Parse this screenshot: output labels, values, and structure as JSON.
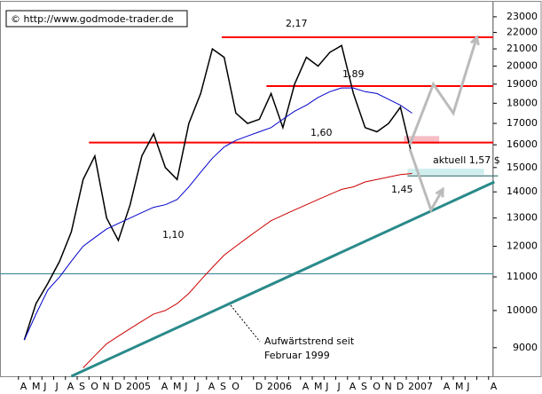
{
  "chart_data": {
    "type": "line",
    "source": "© http://www.godmode-trader.de",
    "log_y": true,
    "categories": [
      "A",
      "M",
      "J",
      "J",
      "A",
      "S",
      "O",
      "N",
      "D",
      "2005",
      null,
      null,
      "A",
      "M",
      "J",
      "J",
      "A",
      "S",
      "O",
      null,
      "D",
      "2006",
      null,
      null,
      "A",
      "M",
      "J",
      "J",
      "A",
      "S",
      "O",
      "N",
      "D",
      "2007",
      null,
      null,
      "A",
      "M",
      "J",
      null,
      "A"
    ],
    "series": [
      {
        "color": "#000000",
        "values": [
          9200,
          10200,
          10800,
          11500,
          12500,
          14500,
          15500,
          13000,
          12200,
          13500,
          15500,
          16500,
          15000,
          14500,
          17000,
          18500,
          21000,
          20500,
          17500,
          17000,
          17200,
          18500,
          16800,
          19000,
          20500,
          20000,
          20800,
          21200,
          18500,
          16800,
          16600,
          17000,
          17800,
          15500,
          null,
          null,
          null,
          null,
          null,
          null,
          null
        ]
      },
      {
        "color": "#0000cc",
        "values": [
          9200,
          9900,
          10600,
          11000,
          11500,
          12000,
          12300,
          12600,
          12800,
          13000,
          13200,
          13400,
          13500,
          13700,
          14200,
          14800,
          15400,
          15900,
          16200,
          16400,
          16600,
          16800,
          17200,
          17600,
          17900,
          18300,
          18600,
          18800,
          18800,
          18600,
          18500,
          18200,
          17900,
          17500,
          null,
          null,
          null,
          null,
          null,
          null,
          null
        ]
      },
      {
        "color": "#cc0000",
        "values": [
          null,
          null,
          null,
          null,
          null,
          8500,
          8800,
          9100,
          9300,
          9500,
          9700,
          9900,
          10000,
          10200,
          10500,
          10900,
          11300,
          11700,
          12000,
          12300,
          12600,
          12900,
          13100,
          13300,
          13500,
          13700,
          13900,
          14100,
          14200,
          14400,
          14500,
          14600,
          14700,
          14750,
          null,
          null,
          null,
          null,
          null,
          null,
          null
        ]
      }
    ],
    "ylim": [
      8300,
      24000
    ],
    "yticks": [
      9000,
      10000,
      11000,
      12000,
      13000,
      14000,
      15000,
      16000,
      17000,
      18000,
      19000,
      20000,
      21000,
      22000,
      23000
    ],
    "levels": [
      {
        "value": 21700,
        "from": 16.8,
        "color": "#ff0000"
      },
      {
        "value": 18900,
        "from": 20.6,
        "color": "#ff0000"
      },
      {
        "value": 16100,
        "from": 5.5,
        "color": "#ff0000"
      },
      {
        "value": 11100,
        "from": -2.1,
        "color": "#4a8fa0"
      },
      {
        "value": 14650,
        "from": 32.6,
        "to": 40.3,
        "color": "#2a6a6a"
      }
    ],
    "zones": [
      {
        "y": [
          16050,
          16400
        ],
        "x": [
          32.3,
          35.3
        ],
        "color": "#f6bcc4"
      },
      {
        "y": [
          14700,
          14950
        ],
        "x": [
          32.6,
          39.1
        ],
        "color": "#cfeeee"
      }
    ],
    "trend": {
      "x": [
        4,
        40
      ],
      "values": [
        8300,
        14400
      ],
      "color": "#2a8a8a"
    },
    "forecast": [
      {
        "x": [
          32.8,
          34.8,
          36.5,
          38.5
        ],
        "values": [
          16000,
          19000,
          17500,
          21700
        ]
      },
      {
        "x": [
          32.8,
          34.6,
          35.6
        ],
        "values": [
          15800,
          13300,
          14100
        ]
      }
    ],
    "annotations": [
      {
        "text": "2,17"
      },
      {
        "text": "1,89"
      },
      {
        "text": "1,60"
      },
      {
        "text": "1,45"
      },
      {
        "text": "1,10"
      },
      {
        "text": "aktuell 1,57 $"
      },
      {
        "lines": [
          "Aufwärtstrend seit",
          "Februar 1999"
        ]
      }
    ]
  }
}
